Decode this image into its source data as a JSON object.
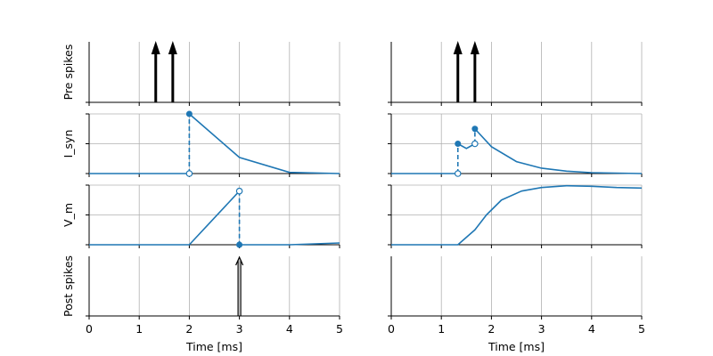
{
  "figure": {
    "xlabel": "Time [ms]",
    "xticks": [
      "0",
      "1",
      "2",
      "3",
      "4",
      "5"
    ],
    "row_labels": [
      "Pre spikes",
      "I_syn",
      "V_m",
      "Post spikes"
    ],
    "colors": {
      "line": "#1f77b4",
      "arrow": "#000000",
      "grid": "#b0b0b0",
      "axis": "#000000"
    }
  },
  "chart_data": [
    {
      "type": "line",
      "panel": "left",
      "xlim": [
        0,
        5
      ],
      "pre_spikes": [
        1.33,
        1.67
      ],
      "post_spikes": [
        3.0
      ],
      "i_syn": {
        "ylim": [
          0,
          1
        ],
        "segments": [
          {
            "x": [
              0,
              2
            ],
            "y": [
              0,
              0
            ]
          },
          {
            "x": [
              2,
              3,
              4,
              5
            ],
            "y": [
              1.0,
              0.27,
              0.02,
              0.0
            ]
          }
        ],
        "jumps": [
          {
            "x": 2,
            "from": 0,
            "to": 1.0
          }
        ]
      },
      "v_m": {
        "ylim": [
          0,
          1
        ],
        "segments": [
          {
            "x": [
              0,
              2,
              3
            ],
            "y": [
              0,
              0,
              0.9
            ]
          },
          {
            "x": [
              3,
              4,
              5
            ],
            "y": [
              0,
              0,
              0.03
            ]
          }
        ],
        "resets": [
          {
            "x": 3,
            "from": 0.9,
            "to": 0
          }
        ]
      }
    },
    {
      "type": "line",
      "panel": "right",
      "xlim": [
        0,
        5
      ],
      "pre_spikes": [
        1.33,
        1.67
      ],
      "post_spikes": [],
      "i_syn": {
        "ylim": [
          0,
          1
        ],
        "segments": [
          {
            "x": [
              0,
              1.33
            ],
            "y": [
              0,
              0
            ]
          },
          {
            "x": [
              1.33,
              1.5,
              1.67
            ],
            "y": [
              0.5,
              0.42,
              0.5
            ]
          },
          {
            "x": [
              1.67,
              2.0,
              2.5,
              3.0,
              3.5,
              4.0,
              5.0
            ],
            "y": [
              0.75,
              0.45,
              0.2,
              0.09,
              0.04,
              0.015,
              0.0
            ]
          }
        ],
        "jumps": [
          {
            "x": 1.33,
            "from": 0,
            "to": 0.5
          },
          {
            "x": 1.67,
            "from": 0.5,
            "to": 0.75
          }
        ]
      },
      "v_m": {
        "ylim": [
          0,
          1
        ],
        "segments": [
          {
            "x": [
              0,
              1.33,
              1.67,
              1.9,
              2.2,
              2.6,
              3.0,
              3.5,
              4.0,
              4.5,
              5.0
            ],
            "y": [
              0,
              0,
              0.25,
              0.5,
              0.75,
              0.9,
              0.96,
              0.99,
              0.98,
              0.96,
              0.95
            ]
          }
        ],
        "resets": []
      }
    }
  ]
}
